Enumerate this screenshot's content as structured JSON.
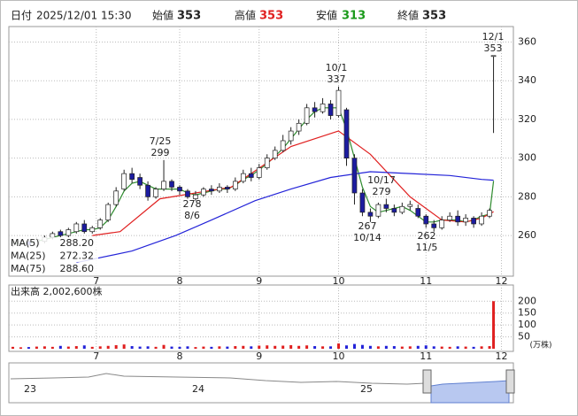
{
  "header": {
    "date_label": "日付",
    "datetime": "2025/12/01 15:30",
    "open_label": "始値",
    "open": 353,
    "high_label": "高値",
    "high": 353,
    "low_label": "安値",
    "low": 313,
    "close_label": "終値",
    "close": 353
  },
  "chart_data": [
    {
      "type": "candlestick",
      "x": [
        0,
        2,
        4,
        6,
        8,
        10,
        12,
        14,
        16,
        18,
        20,
        22,
        24,
        26,
        28,
        30,
        32,
        34,
        36,
        38,
        40,
        42,
        44,
        46,
        48,
        50,
        52,
        54,
        56,
        58,
        60,
        62,
        64,
        66,
        68,
        70,
        72,
        74,
        76,
        78,
        80,
        82,
        84,
        86,
        88,
        90,
        92,
        94,
        96,
        98,
        100,
        102,
        104,
        106,
        108,
        110,
        112,
        114,
        116,
        118,
        120,
        121
      ],
      "open": [
        255,
        256,
        257,
        255,
        257,
        259,
        262,
        260,
        262,
        266,
        262,
        264,
        268,
        276,
        284,
        292,
        290,
        286,
        280,
        284,
        288,
        285,
        283,
        279,
        281,
        284,
        283,
        285,
        284,
        288,
        292,
        290,
        295,
        300,
        304,
        309,
        314,
        318,
        326,
        324,
        328,
        322,
        325,
        300,
        282,
        272,
        270,
        276,
        274,
        272,
        275,
        274,
        270,
        266,
        264,
        268,
        270,
        267,
        269,
        266,
        270,
        353
      ],
      "high": [
        258,
        258,
        258,
        259,
        260,
        262,
        263,
        264,
        267,
        268,
        265,
        269,
        277,
        285,
        294,
        295,
        292,
        288,
        285,
        299,
        289,
        286,
        284,
        283,
        285,
        286,
        287,
        286,
        290,
        294,
        295,
        297,
        302,
        306,
        312,
        316,
        320,
        328,
        329,
        331,
        330,
        337,
        326,
        302,
        284,
        274,
        277,
        279,
        276,
        277,
        278,
        276,
        271,
        268,
        270,
        272,
        273,
        271,
        270,
        272,
        274,
        353
      ],
      "low": [
        254,
        255,
        254,
        254,
        256,
        258,
        259,
        259,
        261,
        261,
        261,
        263,
        267,
        275,
        283,
        287,
        284,
        278,
        279,
        283,
        283,
        281,
        279,
        278,
        280,
        281,
        282,
        282,
        283,
        287,
        288,
        289,
        294,
        299,
        303,
        307,
        312,
        317,
        321,
        323,
        320,
        321,
        296,
        276,
        270,
        267,
        269,
        272,
        270,
        271,
        273,
        269,
        264,
        262,
        263,
        267,
        265,
        265,
        264,
        265,
        269,
        313
      ],
      "close": [
        256,
        257,
        255,
        258,
        259,
        261,
        260,
        263,
        266,
        262,
        264,
        268,
        276,
        283,
        292,
        289,
        286,
        280,
        284,
        288,
        285,
        283,
        280,
        281,
        284,
        283,
        285,
        284,
        288,
        292,
        290,
        295,
        300,
        304,
        309,
        314,
        318,
        326,
        324,
        328,
        322,
        335,
        300,
        282,
        272,
        270,
        276,
        274,
        272,
        275,
        276,
        270,
        266,
        264,
        268,
        270,
        267,
        269,
        266,
        270,
        273,
        353
      ],
      "up_color": "#ffffff",
      "down_color": "#1c1ca0",
      "series": [
        {
          "name": "MA(5)",
          "color": "#2e8b2e",
          "x": [
            0,
            2,
            4,
            6,
            8,
            10,
            12,
            14,
            16,
            18,
            20,
            22,
            24,
            26,
            28,
            30,
            32,
            34,
            36,
            38,
            40,
            42,
            44,
            46,
            48,
            50,
            52,
            54,
            56,
            58,
            60,
            62,
            64,
            66,
            68,
            70,
            72,
            74,
            76,
            78,
            80,
            82,
            84,
            86,
            88,
            90,
            92,
            94,
            96,
            98,
            100,
            102,
            104,
            106,
            108,
            110,
            112,
            114,
            116,
            118,
            120,
            121
          ],
          "values": [
            256,
            256,
            256,
            257,
            258,
            259,
            260,
            261,
            262,
            263,
            263,
            264,
            268,
            275,
            283,
            287,
            288,
            286,
            284,
            284,
            284,
            284,
            282,
            281,
            282,
            283,
            284,
            284,
            286,
            289,
            291,
            294,
            297,
            301,
            305,
            310,
            315,
            320,
            324,
            326,
            326,
            326,
            315,
            300,
            285,
            275,
            272,
            273,
            274,
            275,
            273,
            270,
            267,
            267,
            268,
            268,
            268,
            267,
            268,
            270,
            271,
            288.2
          ],
          "latest_label": "288.20"
        },
        {
          "name": "MA(25)",
          "color": "#e02020",
          "x": [
            20,
            27,
            37,
            55,
            70,
            82,
            90,
            100,
            108,
            114,
            118,
            121
          ],
          "values": [
            260,
            262,
            279,
            285,
            306,
            314,
            302,
            280,
            268,
            267,
            269,
            272.32
          ],
          "latest_label": "272.32"
        },
        {
          "name": "MA(75)",
          "color": "#2323d8",
          "x": [
            16,
            30,
            41,
            50,
            61,
            70,
            80,
            90,
            100,
            110,
            118,
            121
          ],
          "values": [
            246,
            252,
            260,
            268,
            278,
            284,
            290,
            293,
            292,
            291,
            289,
            288.6
          ],
          "latest_label": "288.60"
        }
      ],
      "xlim": [
        -1,
        126
      ],
      "xticks": [
        {
          "value": 21,
          "label": "7"
        },
        {
          "value": 42,
          "label": "8"
        },
        {
          "value": 62,
          "label": "9"
        },
        {
          "value": 82,
          "label": "10"
        },
        {
          "value": 104,
          "label": "11"
        },
        {
          "value": 123,
          "label": "12"
        }
      ],
      "ylim": [
        239,
        368
      ],
      "yticks": [
        260,
        280,
        300,
        320,
        340,
        360
      ],
      "grid": true,
      "annotations": [
        {
          "date": "12/1",
          "price": 353
        },
        {
          "date": "10/1",
          "price": 337
        },
        {
          "date": "7/25",
          "price": 299
        },
        {
          "date": "8/6",
          "price": 278
        },
        {
          "date": "10/17",
          "price": 279
        },
        {
          "date": "10/14",
          "price": 267
        },
        {
          "date": "11/5",
          "price": 262
        }
      ]
    },
    {
      "type": "volume",
      "title": "出来高 2,002,600株",
      "unit": "(万株)",
      "values": [
        8,
        6,
        7,
        9,
        10,
        8,
        12,
        9,
        11,
        14,
        8,
        10,
        12,
        15,
        18,
        11,
        9,
        10,
        8,
        16,
        9,
        8,
        10,
        7,
        9,
        8,
        10,
        9,
        11,
        12,
        10,
        13,
        14,
        12,
        13,
        15,
        12,
        14,
        11,
        10,
        10,
        22,
        14,
        20,
        16,
        12,
        10,
        12,
        11,
        9,
        10,
        12,
        14,
        10,
        9,
        8,
        10,
        9,
        8,
        10,
        11,
        200
      ],
      "up_color": "#e02020",
      "down_color": "#2323d8",
      "ylim": [
        0,
        227
      ],
      "yticks": [
        50,
        100,
        150,
        200
      ]
    }
  ],
  "navigator": {
    "labels": [
      "23",
      "24",
      "25"
    ]
  }
}
